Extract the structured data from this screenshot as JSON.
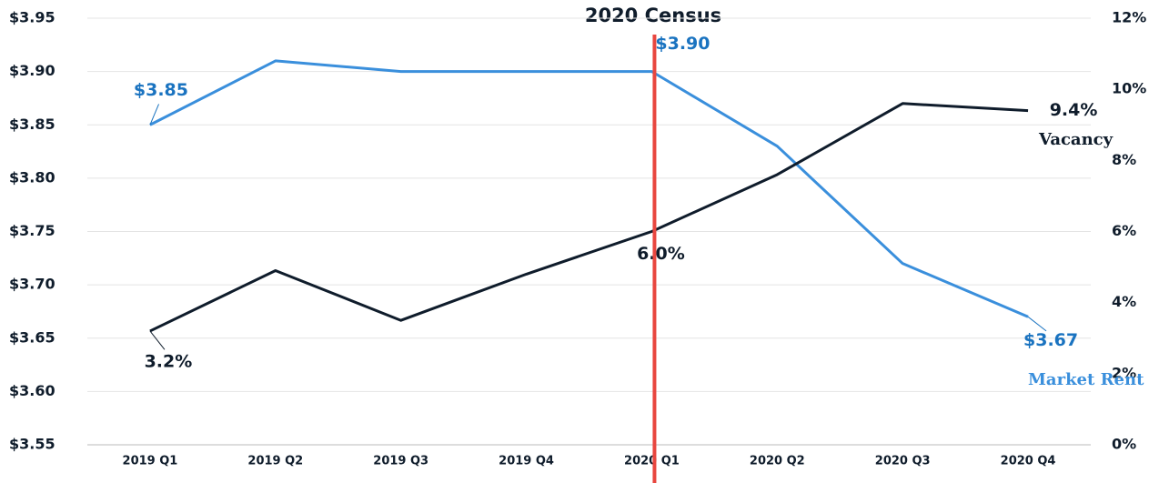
{
  "chart_data": {
    "type": "line",
    "annotation": {
      "text": "2020 Census",
      "at": "2020 Q1"
    },
    "categories": [
      "2019 Q1",
      "2019 Q2",
      "2019 Q3",
      "2019 Q4",
      "2020 Q1",
      "2020 Q2",
      "2020 Q3",
      "2020 Q4"
    ],
    "series": [
      {
        "name": "Market Rent",
        "color": "#3a8fdc",
        "values": [
          3.85,
          3.91,
          3.9,
          3.9,
          3.9,
          3.83,
          3.72,
          3.67
        ],
        "value_labels": [
          "$3.85",
          null,
          null,
          null,
          "$3.90",
          null,
          null,
          "$3.67"
        ]
      },
      {
        "name": "Vacancy",
        "color": "#0f1c2b",
        "axis": "y2",
        "values": [
          3.2,
          4.9,
          3.5,
          4.8,
          6.0,
          7.6,
          9.6,
          9.4
        ],
        "value_labels": [
          "3.2%",
          null,
          null,
          null,
          "6.0%",
          null,
          null,
          "9.4%"
        ]
      }
    ],
    "ylim": [
      3.55,
      3.95
    ],
    "yticks": [
      {
        "value": 3.55,
        "label": "$3.55"
      },
      {
        "value": 3.6,
        "label": "$3.60"
      },
      {
        "value": 3.65,
        "label": "$3.65"
      },
      {
        "value": 3.7,
        "label": "$3.70"
      },
      {
        "value": 3.75,
        "label": "$3.75"
      },
      {
        "value": 3.8,
        "label": "$3.80"
      },
      {
        "value": 3.85,
        "label": "$3.85"
      },
      {
        "value": 3.9,
        "label": "$3.90"
      },
      {
        "value": 3.95,
        "label": "$3.95"
      }
    ],
    "y2lim": [
      0,
      12
    ],
    "y2ticks": [
      {
        "value": 0,
        "label": "0%"
      },
      {
        "value": 2,
        "label": "2%"
      },
      {
        "value": 4,
        "label": "4%"
      },
      {
        "value": 6,
        "label": "6%"
      },
      {
        "value": 8,
        "label": "8%"
      },
      {
        "value": 10,
        "label": "10%"
      },
      {
        "value": 12,
        "label": "12%"
      }
    ],
    "grid": true
  }
}
